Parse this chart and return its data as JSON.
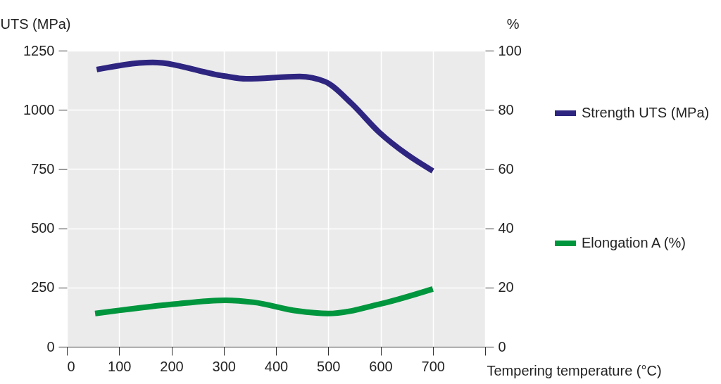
{
  "chart_data": {
    "type": "line",
    "xlabel": "Tempering temperature (°C)",
    "ylabel": "UTS (MPa)",
    "y2label": "%",
    "xlim": [
      0,
      800
    ],
    "xticks": [
      0,
      100,
      200,
      300,
      400,
      500,
      600,
      700,
      {
        "value": 800,
        "label": null
      }
    ],
    "ylim": [
      0,
      1250
    ],
    "yticks": [
      0,
      250,
      500,
      750,
      1000,
      1250
    ],
    "y2lim": [
      0,
      100
    ],
    "y2ticks": [
      0,
      20,
      40,
      60,
      80,
      100
    ],
    "grid": true,
    "legend": "right",
    "line_style": "solid",
    "series": [
      {
        "name": "Strength UTS (MPa)",
        "color": "#2e2580",
        "x": [
          57,
          164,
          300,
          343,
          445,
          494,
          543,
          597,
          651,
          700
        ],
        "values": [
          1170,
          1200,
          1143,
          1131,
          1141,
          1119,
          1030,
          906,
          811,
          742
        ]
      },
      {
        "name": "Elongation A (%)",
        "color": "#00963e",
        "axis": "y2",
        "x": [
          54,
          200,
          304,
          358,
          440,
          499,
          601,
          700
        ],
        "values": [
          11.2,
          14.3,
          15.7,
          15.0,
          12.1,
          11.2,
          14.5,
          19.5
        ]
      }
    ]
  }
}
